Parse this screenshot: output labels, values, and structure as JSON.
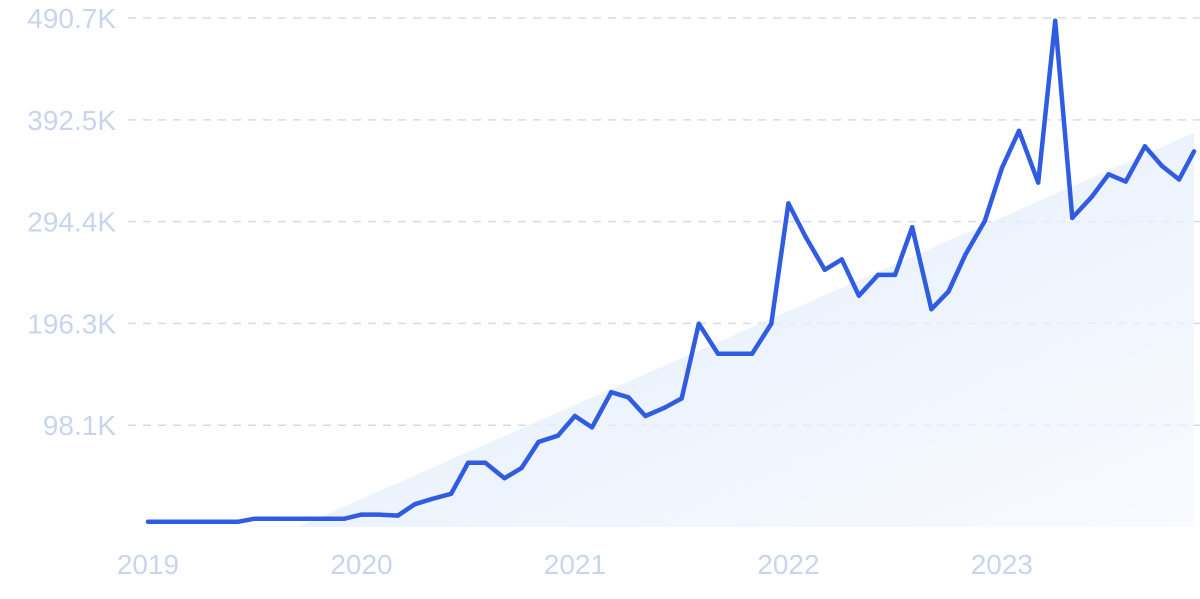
{
  "chart_data": {
    "type": "line",
    "title": "",
    "xlabel": "",
    "ylabel": "",
    "grid": true,
    "legend": "none",
    "xlim": [
      2019.0,
      2023.9
    ],
    "ylim": [
      0,
      490700
    ],
    "y_ticks": [
      98100,
      196300,
      294400,
      392500,
      490700
    ],
    "y_tick_labels": [
      "98.1K",
      "196.3K",
      "294.4K",
      "392.5K",
      "490.7K"
    ],
    "x_ticks": [
      2019,
      2020,
      2021,
      2022,
      2023
    ],
    "x_tick_labels": [
      "2019",
      "2020",
      "2021",
      "2022",
      "2023"
    ],
    "colors": {
      "line": "#2f5ce0",
      "trend_fill": "#dde9fa",
      "grid": "#d2dbf2",
      "tick_text": "#c9d4ee"
    },
    "trend_area": {
      "x": [
        2019.7,
        2023.9
      ],
      "y": [
        0,
        380000
      ]
    },
    "series": [
      {
        "x": [
          2019.0,
          2019.08,
          2019.17,
          2019.25,
          2019.33,
          2019.42,
          2019.5,
          2019.58,
          2019.67,
          2019.75,
          2019.83,
          2019.92,
          2020.0,
          2020.08,
          2020.17,
          2020.25,
          2020.33,
          2020.42,
          2020.5,
          2020.58,
          2020.67,
          2020.75,
          2020.83,
          2020.92,
          2021.0,
          2021.08,
          2021.17,
          2021.25,
          2021.33,
          2021.42,
          2021.5,
          2021.58,
          2021.67,
          2021.75,
          2021.83,
          2021.92,
          2022.0,
          2022.08,
          2022.17,
          2022.25,
          2022.33,
          2022.42,
          2022.5,
          2022.58,
          2022.67,
          2022.75,
          2022.83,
          2022.92,
          2023.0,
          2023.08,
          2023.17,
          2023.25,
          2023.33,
          2023.42,
          2023.5,
          2023.58,
          2023.67,
          2023.75,
          2023.83,
          2023.9
        ],
        "values": [
          5000,
          5000,
          5000,
          5000,
          5000,
          5000,
          8000,
          8000,
          8000,
          8000,
          8000,
          8000,
          12000,
          12000,
          11000,
          22000,
          27000,
          32000,
          62000,
          62000,
          47000,
          57000,
          82000,
          88000,
          107000,
          96000,
          130000,
          125000,
          107000,
          115000,
          124000,
          196000,
          167000,
          167000,
          167000,
          196000,
          312000,
          280000,
          248000,
          258000,
          223000,
          243000,
          243000,
          289000,
          210000,
          227000,
          263000,
          295000,
          346000,
          382000,
          332000,
          488000,
          298000,
          318000,
          340000,
          333000,
          367000,
          348000,
          335000,
          362000
        ]
      }
    ]
  }
}
